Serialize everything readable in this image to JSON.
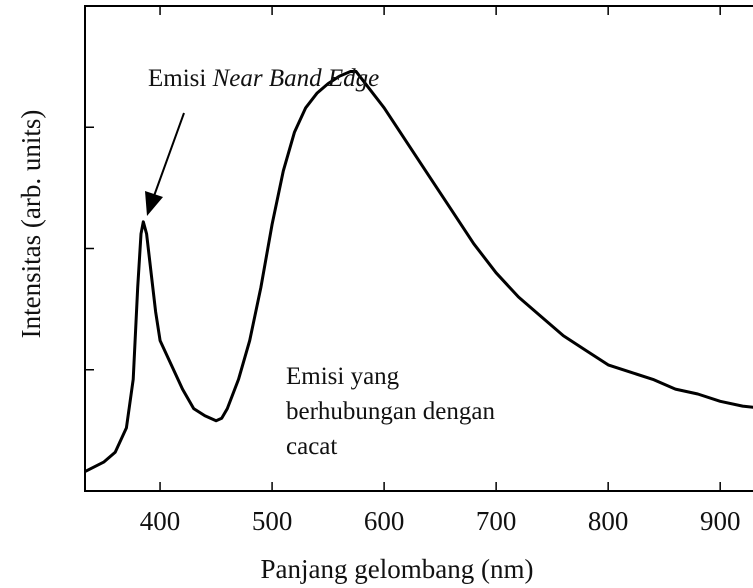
{
  "chart_data": {
    "type": "line",
    "title": "",
    "xlabel": "Panjang gelombang (nm)",
    "ylabel": "Intensitas (arb. units)",
    "xlim": [
      333,
      940
    ],
    "ylim": [
      0,
      1.0
    ],
    "xticks": [
      400,
      500,
      600,
      700,
      800,
      900
    ],
    "xtick_labels": [
      "400",
      "500",
      "600",
      "700",
      "800",
      "900"
    ],
    "yticks": [
      0.25,
      0.5,
      0.75
    ],
    "y_tick_labels_shown": false,
    "grid": false,
    "legend": "none",
    "line_color": "#000000",
    "series": [
      {
        "x": [
          333,
          350,
          360,
          370,
          376,
          380,
          383,
          385,
          388,
          392,
          396,
          400,
          410,
          420,
          430,
          440,
          450,
          455,
          460,
          470,
          480,
          490,
          500,
          510,
          520,
          530,
          540,
          550,
          560,
          570,
          575,
          580,
          590,
          600,
          620,
          640,
          660,
          680,
          700,
          720,
          740,
          760,
          780,
          800,
          820,
          840,
          860,
          880,
          900,
          920,
          940
        ],
        "y": [
          0.04,
          0.06,
          0.08,
          0.13,
          0.23,
          0.42,
          0.53,
          0.555,
          0.53,
          0.45,
          0.37,
          0.31,
          0.26,
          0.21,
          0.17,
          0.155,
          0.145,
          0.15,
          0.17,
          0.23,
          0.31,
          0.42,
          0.55,
          0.66,
          0.74,
          0.79,
          0.82,
          0.84,
          0.855,
          0.865,
          0.865,
          0.85,
          0.82,
          0.79,
          0.72,
          0.65,
          0.58,
          0.51,
          0.45,
          0.4,
          0.36,
          0.32,
          0.29,
          0.26,
          0.245,
          0.23,
          0.21,
          0.2,
          0.185,
          0.175,
          0.17
        ]
      }
    ],
    "annotations": [
      {
        "text_plain": "Emisi ",
        "text_italic": "Near Band Edge",
        "x": 418,
        "y": 0.86,
        "arrow_to": [
          385,
          0.565
        ]
      },
      {
        "lines": [
          "Emisi yang",
          "berhubungan dengan",
          "cacat"
        ],
        "x": 513,
        "y": 0.24
      }
    ]
  }
}
